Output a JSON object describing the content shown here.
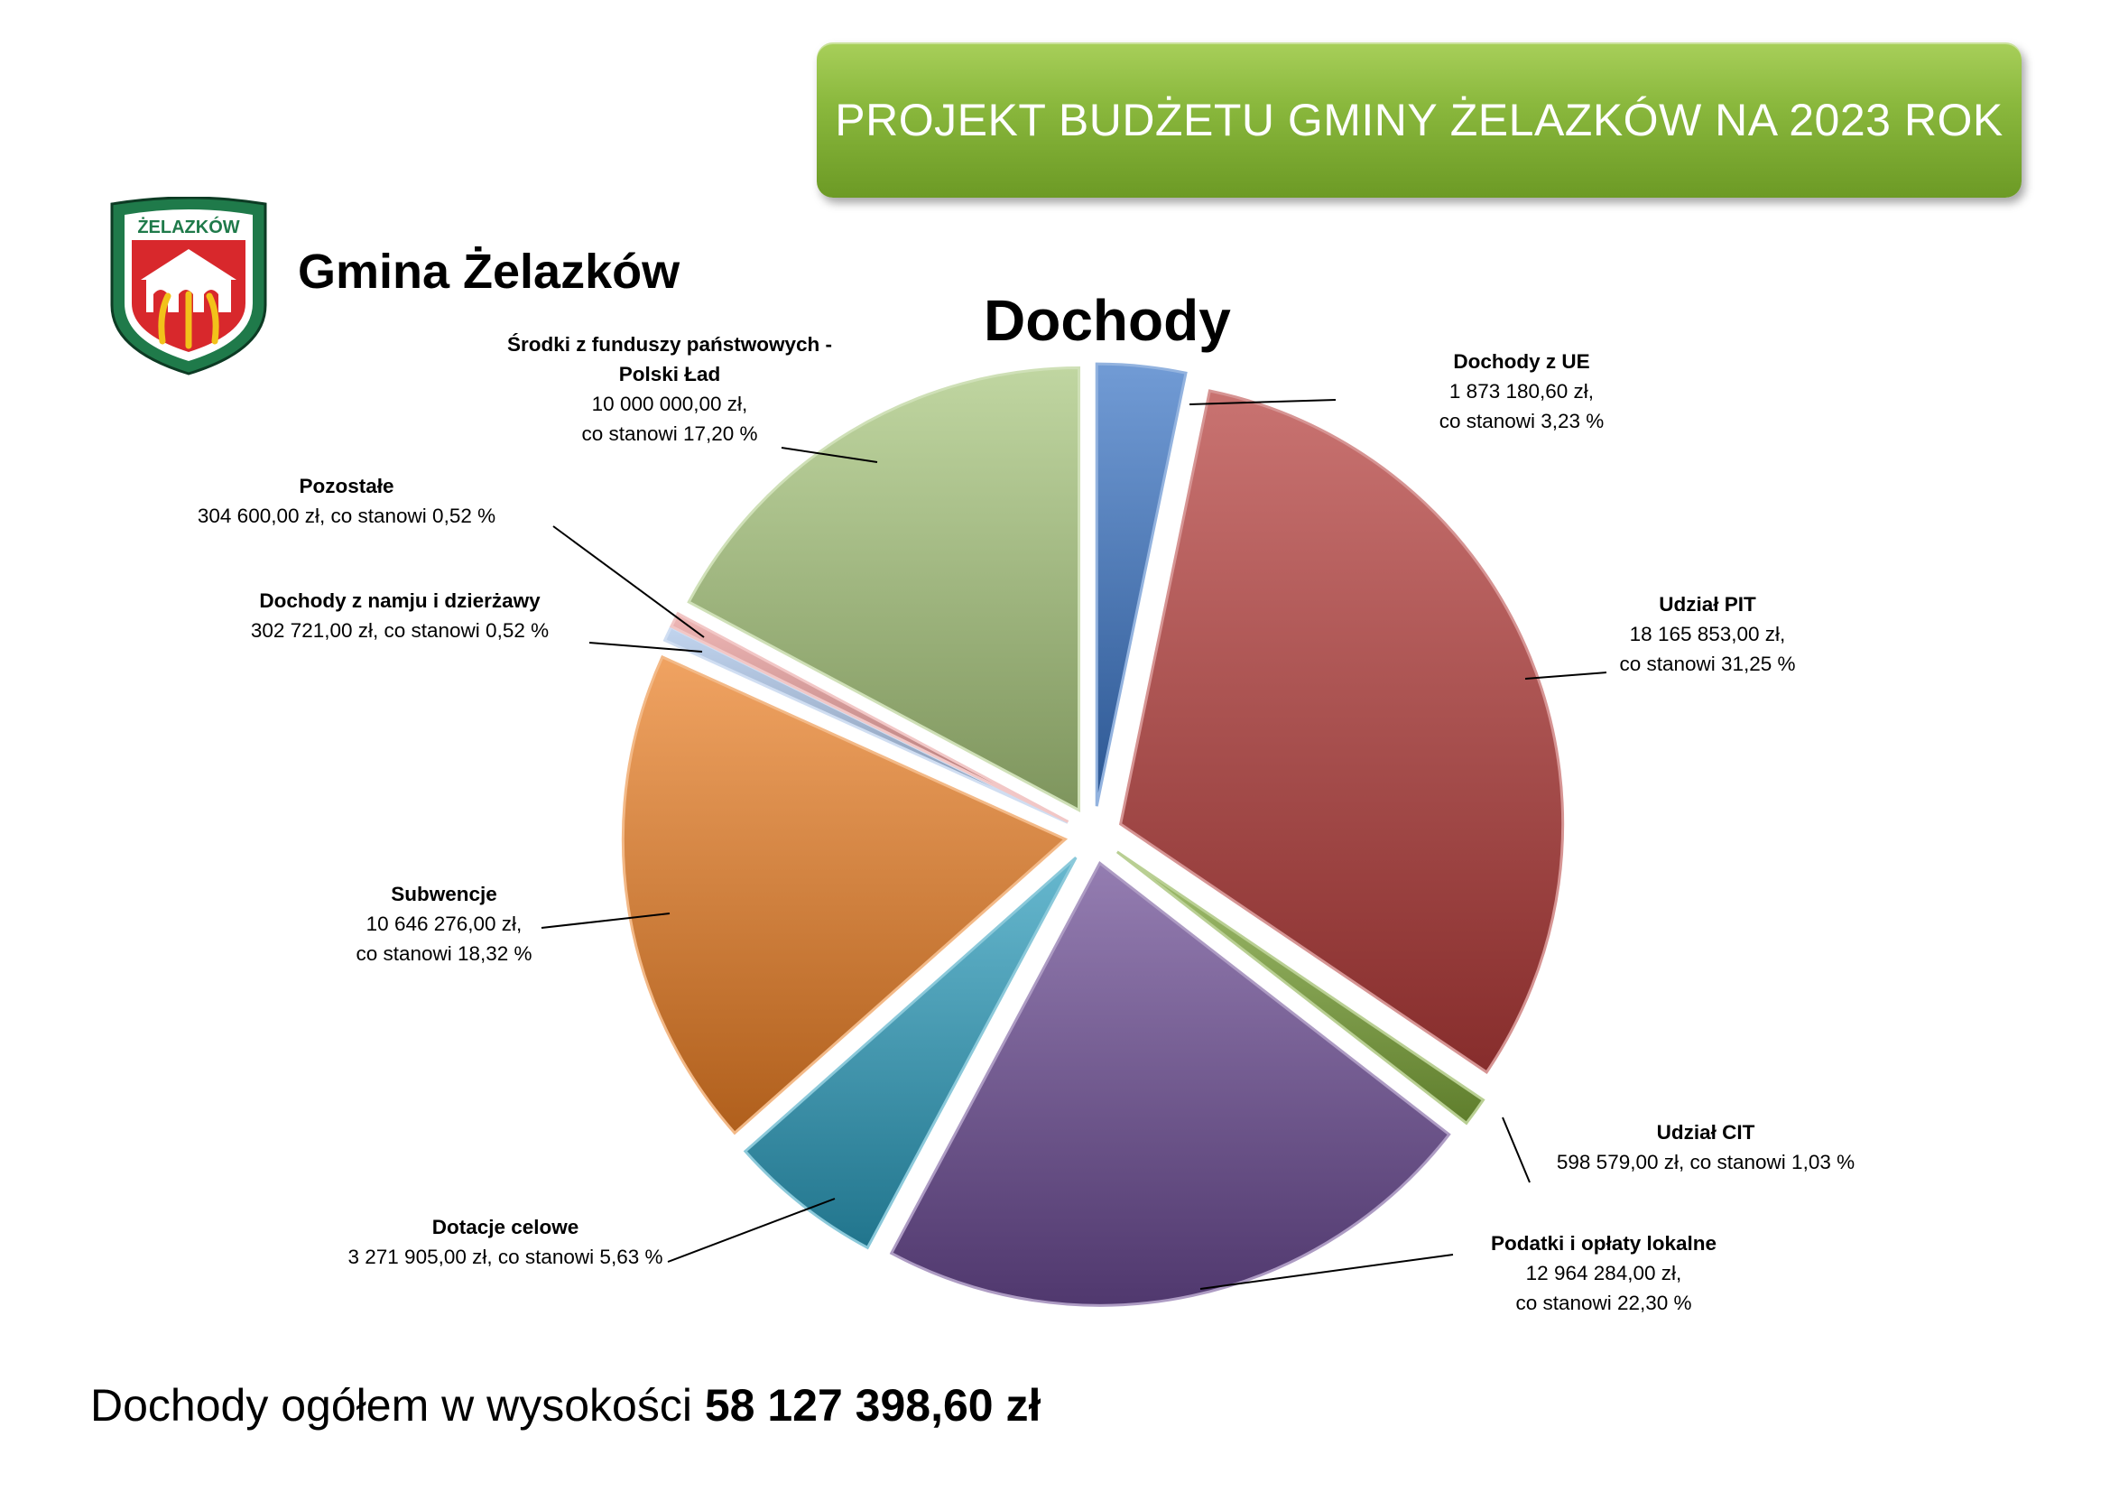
{
  "banner": {
    "title": "PROJEKT BUDŻETU GMINY ŻELAZKÓW NA 2023 ROK"
  },
  "header": {
    "gmina": "Gmina Żelazków",
    "crest_text": "ŻELAZKÓW"
  },
  "colors": {
    "banner": "#8ab83d"
  },
  "chart_data": {
    "type": "pie",
    "title": "Dochody",
    "slices": [
      {
        "name": "Dochody z UE",
        "amount": "1 873 180,60 zł,",
        "share": "co stanowi 3,23 %",
        "percent": 3.23,
        "color": "#3a74c4"
      },
      {
        "name": "Udział PIT",
        "amount": "18 165 853,00 zł,",
        "share": "co stanowi 31,25 %",
        "percent": 31.25,
        "color": "#b43c3a"
      },
      {
        "name": "Udział CIT",
        "amount": "598 579,00 zł, co stanowi 1,03 %",
        "share": "",
        "percent": 1.03,
        "color": "#7fa83a"
      },
      {
        "name": "Podatki i opłaty lokalne",
        "amount": "12 964 284,00 zł,",
        "share": "co stanowi 22,30 %",
        "percent": 22.3,
        "color": "#6a4a92"
      },
      {
        "name": "Dotacje celowe",
        "amount": "3 271 905,00 zł, co stanowi 5,63 %",
        "share": "",
        "percent": 5.63,
        "color": "#2c9cbc"
      },
      {
        "name": "Subwencje",
        "amount": "10 646 276,00 zł,",
        "share": "co stanowi 18,32 %",
        "percent": 18.32,
        "color": "#ea7f25"
      },
      {
        "name": "Dochody z namju i dzierżawy",
        "amount": "302 721,00 zł, co stanowi 0,52 %",
        "share": "",
        "percent": 0.52,
        "color": "#a9c3e8"
      },
      {
        "name": "Pozostałe",
        "amount": "304 600,00 zł, co stanowi 0,52 %",
        "share": "",
        "percent": 0.52,
        "color": "#e89a98"
      },
      {
        "name": "Środki z funduszy państwowych - Polski Ład",
        "amount": "10 000 000,00 zł,",
        "share": "co stanowi 17,20 %",
        "percent": 17.2,
        "color": "#a8c67c"
      }
    ]
  },
  "footer": {
    "label": "Dochody ogółem w wysokości ",
    "value": "58 127 398,60 zł"
  }
}
